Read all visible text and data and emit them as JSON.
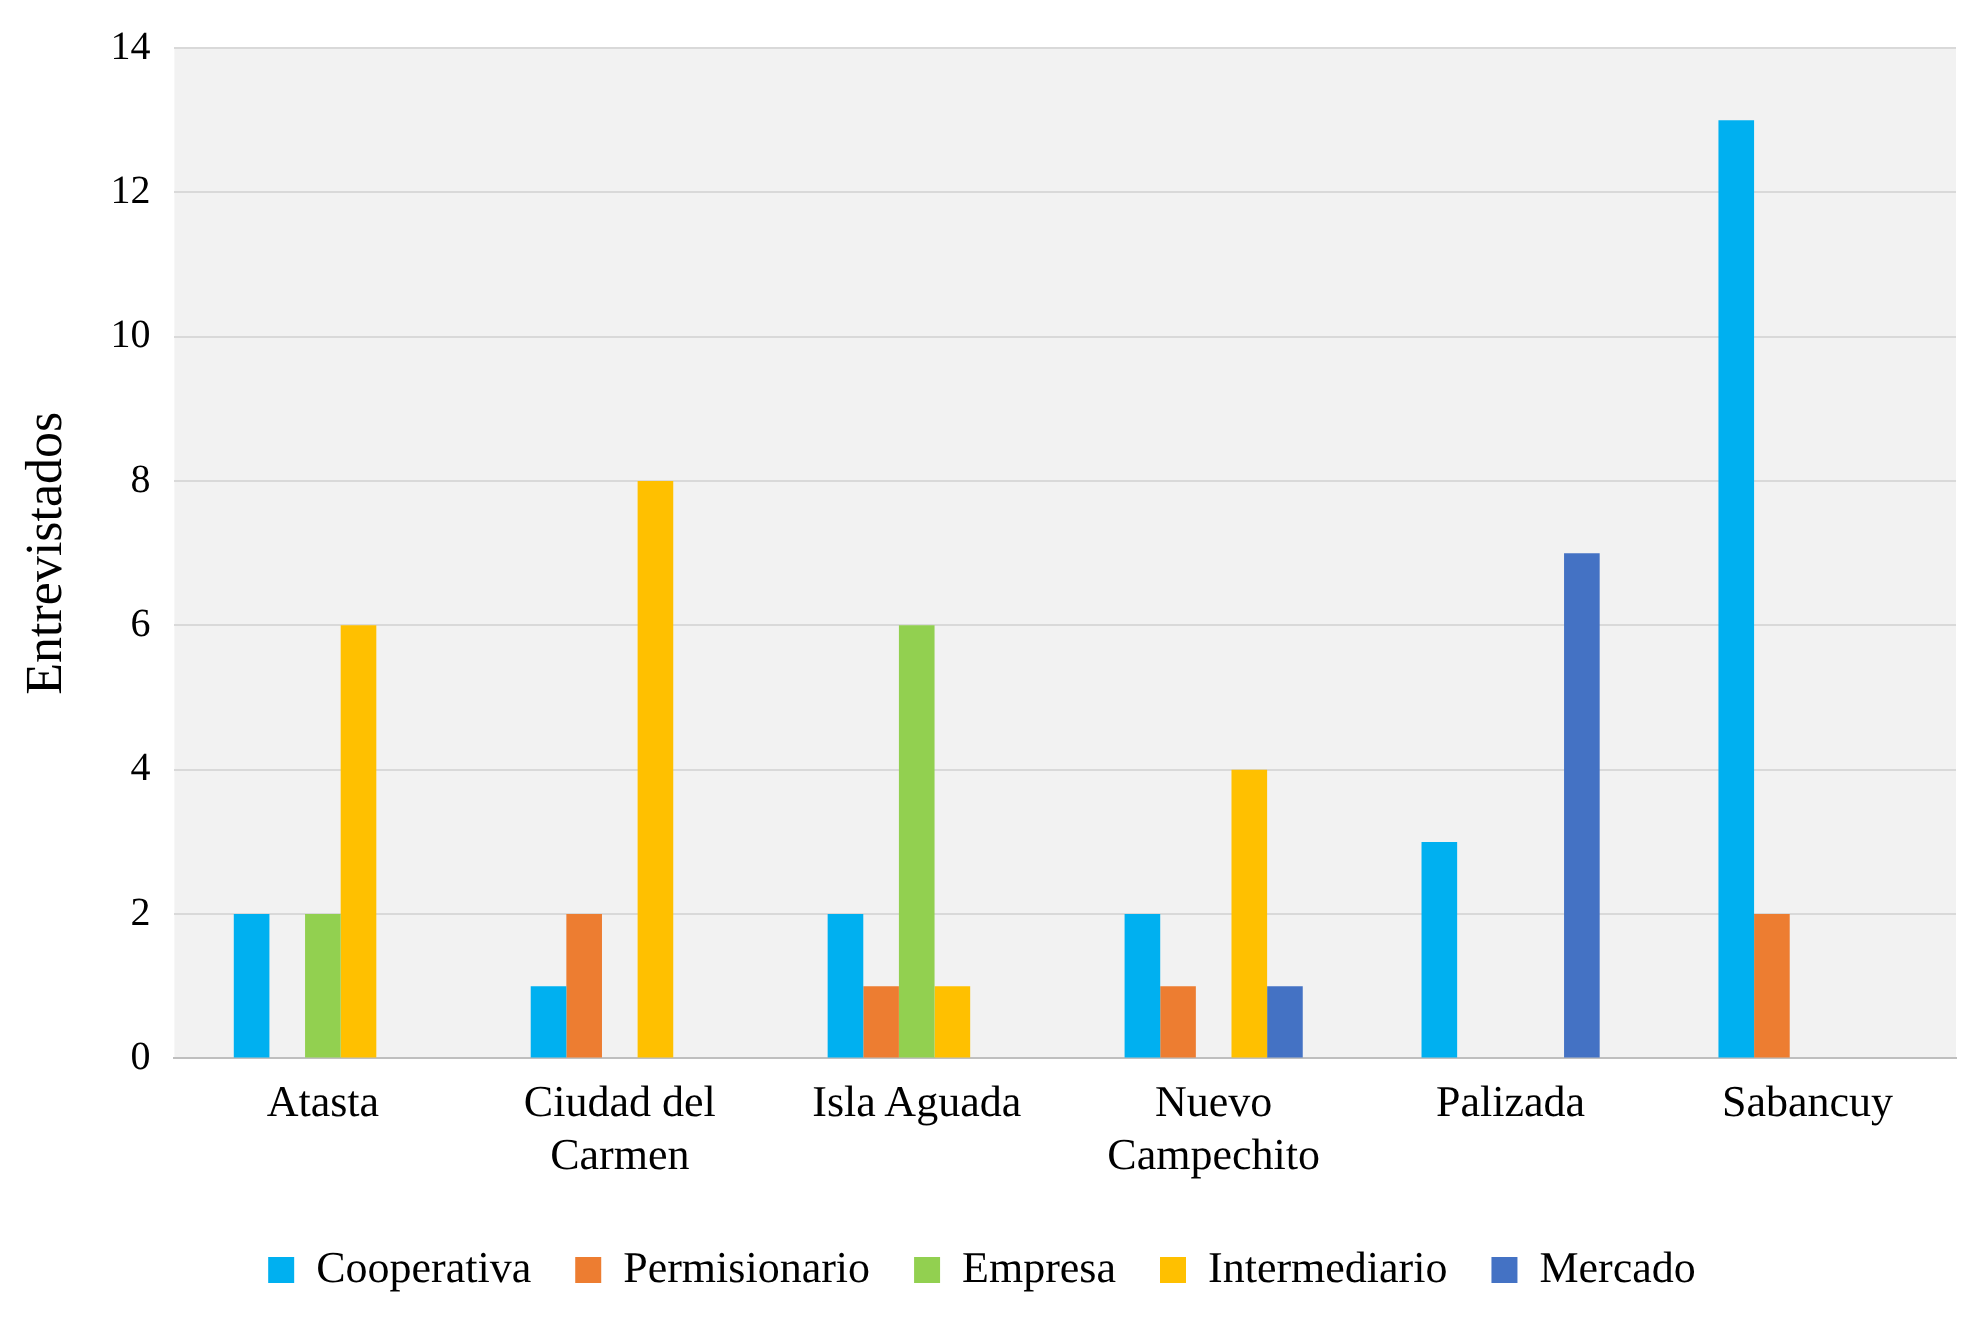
{
  "chart_data": {
    "type": "bar",
    "ylabel": "Entrevistados",
    "categories": [
      "Atasta",
      "Ciudad del Carmen",
      "Isla Aguada",
      "Nuevo Campechito",
      "Palizada",
      "Sabancuy"
    ],
    "series": [
      {
        "name": "Cooperativa",
        "color": "#00b0f0",
        "values": [
          2,
          1,
          2,
          2,
          3,
          13
        ]
      },
      {
        "name": "Permisionario",
        "color": "#ed7d31",
        "values": [
          0,
          2,
          1,
          1,
          0,
          2
        ]
      },
      {
        "name": "Empresa",
        "color": "#92d050",
        "values": [
          2,
          0,
          6,
          0,
          0,
          0
        ]
      },
      {
        "name": "Intermediario",
        "color": "#ffc000",
        "values": [
          6,
          8,
          1,
          4,
          0,
          0
        ]
      },
      {
        "name": "Mercado",
        "color": "#4472c4",
        "values": [
          0,
          0,
          0,
          1,
          7,
          0
        ]
      }
    ],
    "ylim": [
      0,
      14
    ],
    "yticks": [
      0,
      2,
      4,
      6,
      8,
      10,
      12,
      14
    ],
    "grid": "y",
    "legend": "bottom"
  }
}
